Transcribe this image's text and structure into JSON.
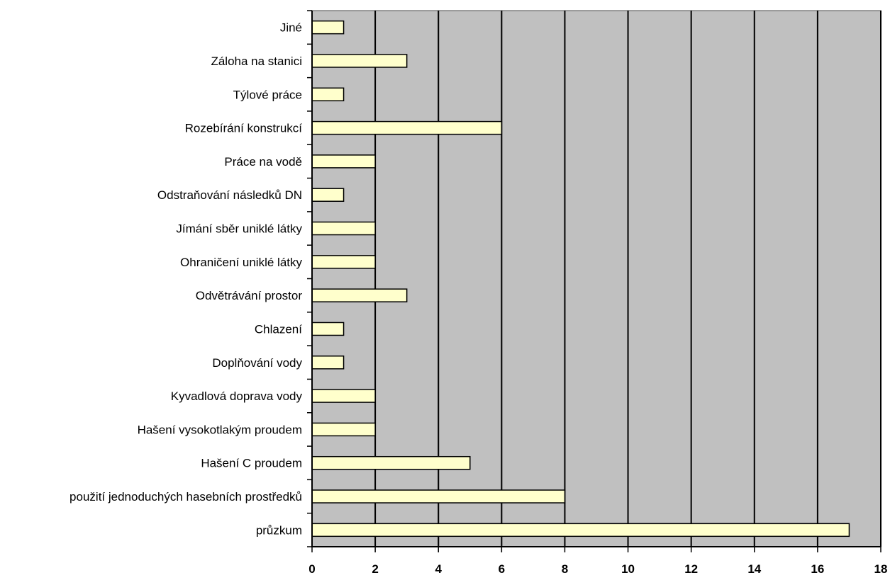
{
  "chart_data": {
    "type": "bar",
    "orientation": "horizontal",
    "title": "",
    "xlabel": "",
    "ylabel": "",
    "categories": [
      "průzkum",
      "použití jednoduchých hasebních prostředků",
      "Hašení C proudem",
      "Hašení vysokotlakým proudem",
      "Kyvadlová doprava vody",
      "Doplňování vody",
      "Chlazení",
      "Odvětrávání prostor",
      "Ohraničení uniklé látky",
      "Jímání sběr uniklé látky",
      "Odstraňování následků DN",
      "Práce na vodě",
      "Rozebírání konstrukcí",
      "Týlové práce",
      "Záloha na stanici",
      "Jiné"
    ],
    "values": [
      17,
      8,
      5,
      2,
      2,
      1,
      1,
      3,
      2,
      2,
      1,
      2,
      6,
      1,
      3,
      1
    ],
    "xlim": [
      0,
      18
    ],
    "xticks": [
      "0",
      "2",
      "4",
      "6",
      "8",
      "10",
      "12",
      "14",
      "16",
      "18"
    ],
    "grid": true,
    "legend": "none",
    "colors": {
      "plot_background": "#c0c0c0",
      "bar_fill": "#ffffcc",
      "bar_stroke": "#000000",
      "gridline": "#000000",
      "plot_border": "#808080"
    }
  }
}
